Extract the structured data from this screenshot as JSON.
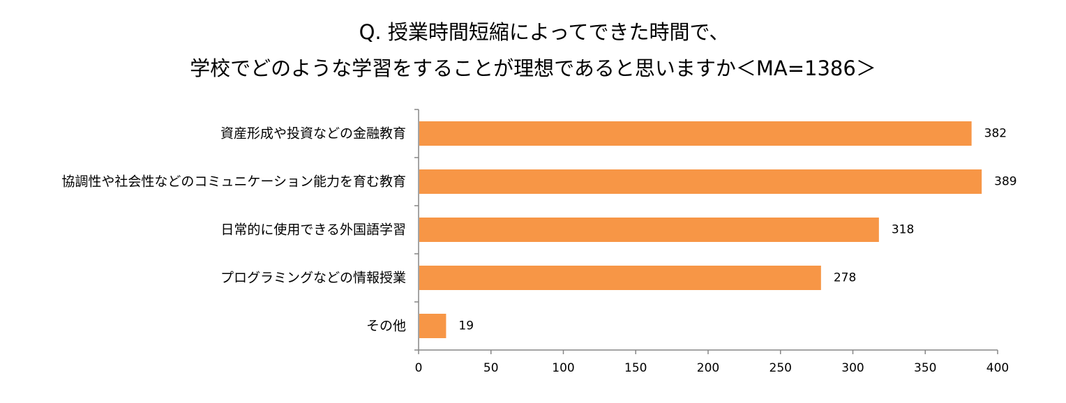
{
  "chart_data": {
    "type": "bar",
    "orientation": "horizontal",
    "title": [
      "Q. 授業時間短縮によってできた時間で、",
      "学校でどのような学習をすることが理想であると思いますか＜MA=1386＞"
    ],
    "categories": [
      "資産形成や投資などの金融教育",
      "協調性や社会性などのコミュニケーション能力を育む教育",
      "日常的に使用できる外国語学習",
      "プログラミングなどの情報授業",
      "その他"
    ],
    "values": [
      382,
      389,
      318,
      278,
      19
    ],
    "xlim": [
      0,
      400
    ],
    "xticks": [
      0,
      50,
      100,
      150,
      200,
      250,
      300,
      350,
      400
    ],
    "grid": false,
    "legend": "none",
    "bar_color": "#F79646",
    "axis_color": "#868686"
  }
}
